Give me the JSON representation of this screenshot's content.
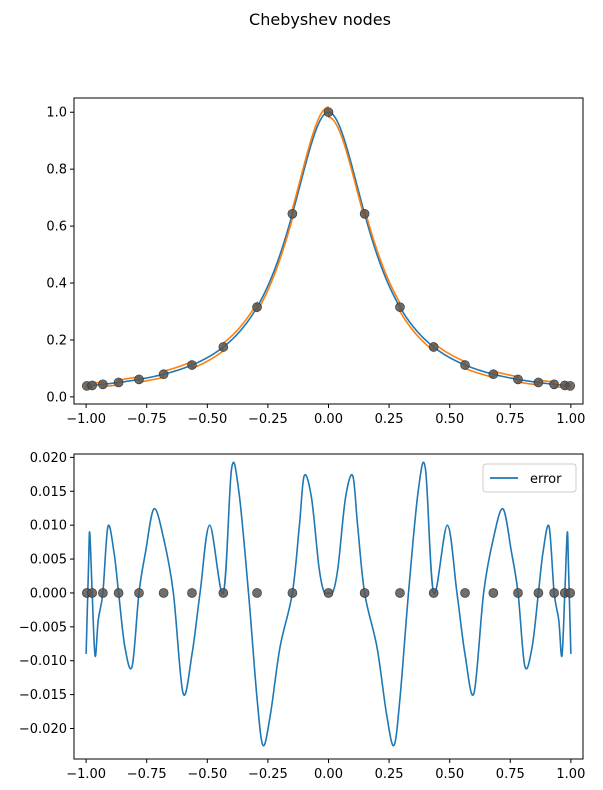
{
  "figure": {
    "suptitle": "Chebyshev nodes"
  },
  "colors": {
    "blue": "#1f77b4",
    "orange": "#ff7f0e",
    "node": "#555555"
  },
  "chart_data": [
    {
      "type": "line",
      "subplot": "top",
      "title": "",
      "xlabel": "",
      "ylabel": "",
      "xlim": [
        -1.05,
        1.05
      ],
      "ylim": [
        -0.025,
        1.05
      ],
      "xticks": [
        -1.0,
        -0.75,
        -0.5,
        -0.25,
        0.0,
        0.25,
        0.5,
        0.75,
        1.0
      ],
      "xtick_labels": [
        "−1.00",
        "−0.75",
        "−0.50",
        "−0.25",
        "0.00",
        "0.25",
        "0.50",
        "0.75",
        "1.00"
      ],
      "yticks": [
        0.0,
        0.2,
        0.4,
        0.6,
        0.8,
        1.0
      ],
      "ytick_labels": [
        "0.0",
        "0.2",
        "0.4",
        "0.6",
        "0.8",
        "1.0"
      ],
      "grid": false,
      "legend": false,
      "function": "1/(1+25x^2)",
      "interpolation_error_amplitude": 0.018,
      "series": [
        {
          "color": "#1f77b4",
          "kind": "function"
        },
        {
          "color": "#ff7f0e",
          "kind": "interpolant"
        }
      ],
      "nodes": {
        "x": [
          -0.9972,
          -0.9749,
          -0.9309,
          -0.866,
          -0.7818,
          -0.6802,
          -0.5633,
          -0.4339,
          -0.2948,
          -0.149,
          0.0,
          0.149,
          0.2948,
          0.4339,
          0.5633,
          0.6802,
          0.7818,
          0.866,
          0.9309,
          0.9749,
          0.9972
        ],
        "y": [
          0.0387,
          0.0403,
          0.0441,
          0.0506,
          0.0614,
          0.0796,
          0.1119,
          0.1753,
          0.3152,
          0.6431,
          1.0,
          0.6431,
          0.3152,
          0.1753,
          0.1119,
          0.0796,
          0.0614,
          0.0506,
          0.0441,
          0.0403,
          0.0387
        ]
      }
    },
    {
      "type": "line",
      "subplot": "bottom",
      "title": "",
      "xlabel": "",
      "ylabel": "",
      "xlim": [
        -1.05,
        1.05
      ],
      "ylim": [
        -0.0245,
        0.0205
      ],
      "xticks": [
        -1.0,
        -0.75,
        -0.5,
        -0.25,
        0.0,
        0.25,
        0.5,
        0.75,
        1.0
      ],
      "xtick_labels": [
        "−1.00",
        "−0.75",
        "−0.50",
        "−0.25",
        "0.00",
        "0.25",
        "0.50",
        "0.75",
        "1.00"
      ],
      "yticks": [
        -0.02,
        -0.015,
        -0.01,
        -0.005,
        0.0,
        0.005,
        0.01,
        0.015,
        0.02
      ],
      "ytick_labels": [
        "−0.020",
        "−0.015",
        "−0.010",
        "−0.005",
        "0.000",
        "0.005",
        "0.010",
        "0.015",
        "0.020"
      ],
      "grid": false,
      "legend": {
        "position": "upper-right",
        "entries": [
          "error"
        ]
      },
      "series": [
        {
          "name": "error",
          "color": "#1f77b4"
        }
      ],
      "error_curve": {
        "x": [
          -1.0,
          -0.99,
          -0.985,
          -0.975,
          -0.963,
          -0.95,
          -0.931,
          -0.91,
          -0.885,
          -0.866,
          -0.84,
          -0.81,
          -0.782,
          -0.755,
          -0.72,
          -0.68,
          -0.64,
          -0.6,
          -0.563,
          -0.53,
          -0.49,
          -0.434,
          -0.4,
          -0.37,
          -0.33,
          -0.295,
          -0.27,
          -0.24,
          -0.2,
          -0.149,
          -0.12,
          -0.1,
          -0.07,
          -0.04,
          -0.02,
          0.0,
          0.02,
          0.04,
          0.07,
          0.1,
          0.12,
          0.149,
          0.2,
          0.24,
          0.27,
          0.295,
          0.33,
          0.37,
          0.4,
          0.434,
          0.49,
          0.53,
          0.563,
          0.6,
          0.64,
          0.68,
          0.72,
          0.755,
          0.782,
          0.81,
          0.84,
          0.866,
          0.885,
          0.91,
          0.931,
          0.95,
          0.963,
          0.975,
          0.985,
          0.99,
          1.0
        ],
        "y": [
          -0.009,
          0.004,
          0.0089,
          0.0,
          -0.0093,
          -0.004,
          0.0,
          0.0098,
          0.006,
          0.0,
          -0.008,
          -0.0108,
          0.0,
          0.006,
          0.0124,
          0.008,
          0.0,
          -0.0148,
          -0.009,
          0.0,
          0.01,
          0.0,
          0.0183,
          0.015,
          0.0,
          -0.0155,
          -0.0225,
          -0.018,
          -0.008,
          0.0,
          0.01,
          0.0173,
          0.014,
          0.004,
          0.0003,
          0.0,
          0.0003,
          0.004,
          0.014,
          0.0173,
          0.01,
          0.0,
          -0.008,
          -0.018,
          -0.0225,
          -0.0155,
          0.0,
          0.015,
          0.0183,
          0.0,
          0.01,
          0.0,
          -0.009,
          -0.0148,
          0.0,
          0.008,
          0.0124,
          0.006,
          0.0,
          -0.0108,
          -0.008,
          0.0,
          0.006,
          0.0098,
          0.0,
          -0.004,
          -0.0093,
          0.0,
          0.0089,
          0.004,
          -0.009
        ]
      },
      "nodes": {
        "x": [
          -0.9972,
          -0.9749,
          -0.9309,
          -0.866,
          -0.7818,
          -0.6802,
          -0.5633,
          -0.4339,
          -0.2948,
          -0.149,
          0.0,
          0.149,
          0.2948,
          0.4339,
          0.5633,
          0.6802,
          0.7818,
          0.866,
          0.9309,
          0.9749,
          0.9972
        ],
        "y": [
          0,
          0,
          0,
          0,
          0,
          0,
          0,
          0,
          0,
          0,
          0,
          0,
          0,
          0,
          0,
          0,
          0,
          0,
          0,
          0,
          0
        ]
      }
    }
  ]
}
